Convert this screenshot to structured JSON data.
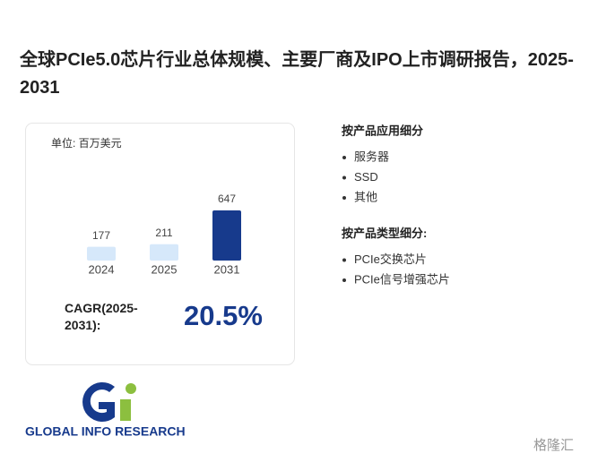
{
  "header": {
    "title": "全球PCIe5.0芯片行业总体规模、主要厂商及IPO上市调研报告，2025-2031"
  },
  "chart_data": {
    "type": "bar",
    "subtitle": "单位: 百万美元",
    "categories": [
      "2024",
      "2025",
      "2031"
    ],
    "values": [
      177,
      211,
      647
    ],
    "colors": [
      "#d6e8fa",
      "#d6e8fa",
      "#173a8c"
    ]
  },
  "cagr": {
    "label": "CAGR(2025-2031):",
    "value": "20.5%"
  },
  "segments": [
    {
      "title": "按产品应用细分",
      "items": [
        "服务器",
        "SSD",
        "其他"
      ]
    },
    {
      "title": "按产品类型细分:",
      "items": [
        "PCIe交换芯片",
        "PCIe信号增强芯片"
      ]
    }
  ],
  "logo": {
    "text": "GLOBAL INFO RESEARCH"
  },
  "watermark": "格隆汇"
}
